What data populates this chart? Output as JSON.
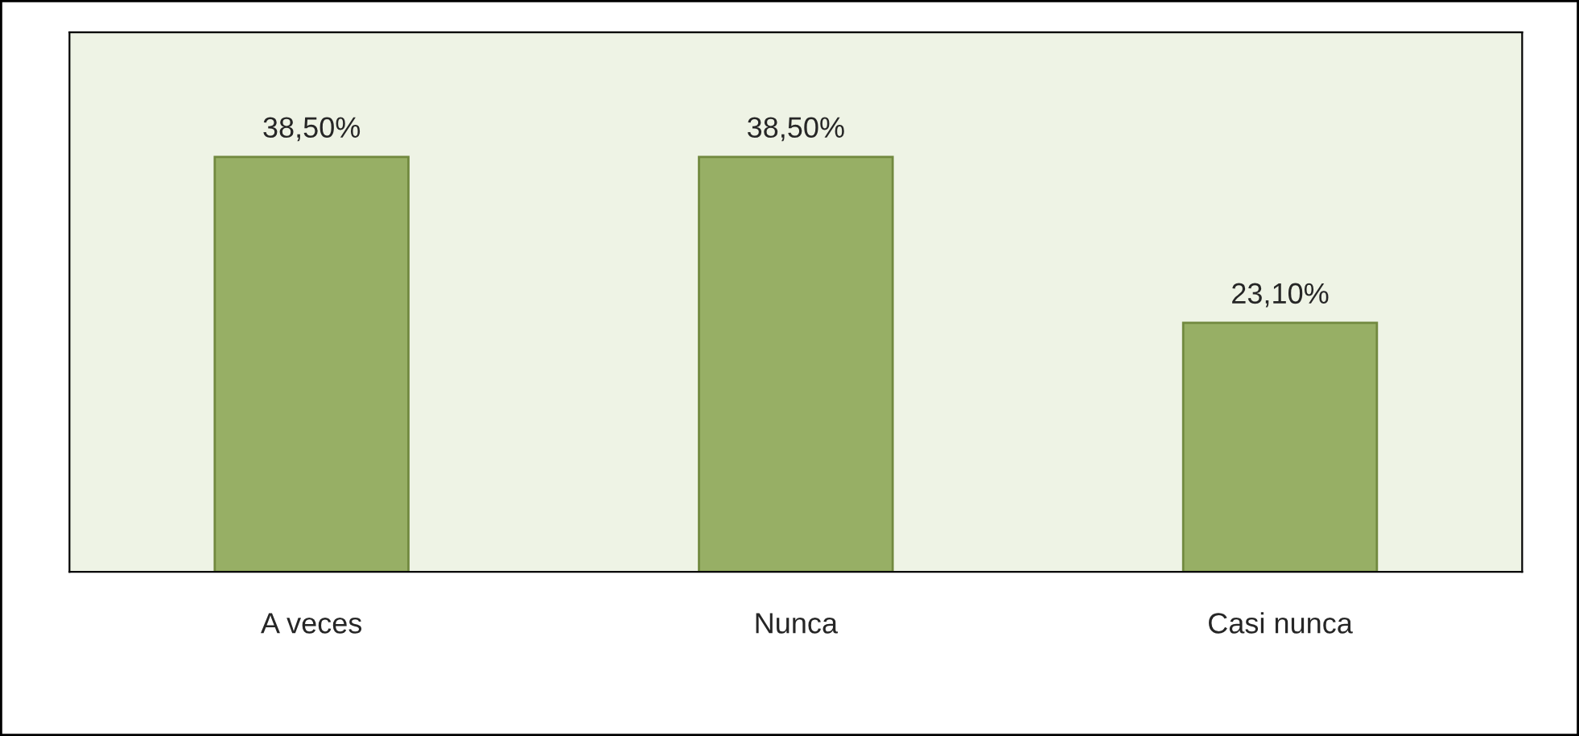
{
  "chart_data": {
    "type": "bar",
    "categories": [
      "A veces",
      "Nunca",
      "Casi nunca"
    ],
    "values": [
      38.5,
      38.5,
      23.1
    ],
    "value_labels": [
      "38,50%",
      "38,50%",
      "23,10%"
    ],
    "color": "#9bbb59",
    "grid": false,
    "legend": false
  }
}
